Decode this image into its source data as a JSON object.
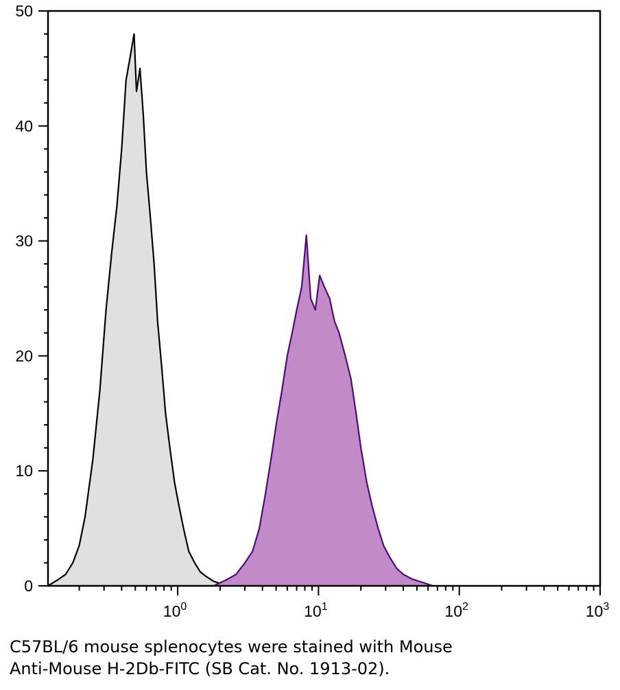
{
  "chart_data": {
    "type": "area",
    "title": "",
    "xlabel": "",
    "ylabel": "",
    "x_scale": "log",
    "xlim": [
      0.12,
      1000
    ],
    "ylim": [
      0,
      50
    ],
    "grid": false,
    "y_ticks": [
      "0",
      "10",
      "20",
      "30",
      "40",
      "50"
    ],
    "x_ticks": [
      {
        "base": "10",
        "exp": "0"
      },
      {
        "base": "10",
        "exp": "1"
      },
      {
        "base": "10",
        "exp": "2"
      },
      {
        "base": "10",
        "exp": "3"
      }
    ],
    "series": [
      {
        "fill": "#e0e0e0",
        "stroke": "#000000",
        "x": [
          0.12,
          0.14,
          0.16,
          0.18,
          0.2,
          0.22,
          0.25,
          0.28,
          0.31,
          0.34,
          0.37,
          0.4,
          0.43,
          0.46,
          0.49,
          0.51,
          0.54,
          0.57,
          0.6,
          0.64,
          0.68,
          0.72,
          0.77,
          0.82,
          0.88,
          0.95,
          1.02,
          1.1,
          1.2,
          1.32,
          1.45,
          1.6,
          1.8,
          2.0,
          2.2
        ],
        "values": [
          0,
          0.5,
          1,
          2,
          3.5,
          6,
          11,
          17,
          24,
          29,
          33,
          38,
          44,
          46,
          48,
          43,
          45,
          41,
          36,
          32,
          28,
          23,
          19,
          15,
          12,
          9,
          7,
          5,
          3,
          2,
          1.2,
          0.8,
          0.4,
          0.2,
          0
        ]
      },
      {
        "fill": "#c28ac6",
        "stroke": "#4b0a7e",
        "x": [
          1.8,
          2.2,
          2.6,
          3.0,
          3.4,
          3.8,
          4.2,
          4.6,
          5.0,
          5.5,
          6.0,
          6.5,
          7.0,
          7.6,
          8.2,
          8.8,
          9.5,
          10.2,
          11.0,
          12.0,
          13.0,
          14.0,
          15.5,
          17.0,
          18.5,
          20.0,
          22.0,
          24.0,
          26.5,
          29.0,
          32.0,
          36.0,
          40.0,
          46.0,
          55.0,
          65.0
        ],
        "values": [
          0,
          0.5,
          1,
          2,
          3,
          5,
          8,
          11,
          14,
          17,
          20,
          22,
          24,
          26,
          30.5,
          25,
          24,
          27,
          26,
          25,
          23,
          22,
          20,
          18,
          15,
          12,
          9,
          7,
          5,
          3.5,
          2.5,
          1.5,
          1,
          0.6,
          0.3,
          0
        ]
      }
    ],
    "caption_lines": [
      "C57BL/6 mouse splenocytes were stained with Mouse",
      "Anti-Mouse H-2Db-FITC (SB Cat. No. 1913-02)."
    ]
  }
}
